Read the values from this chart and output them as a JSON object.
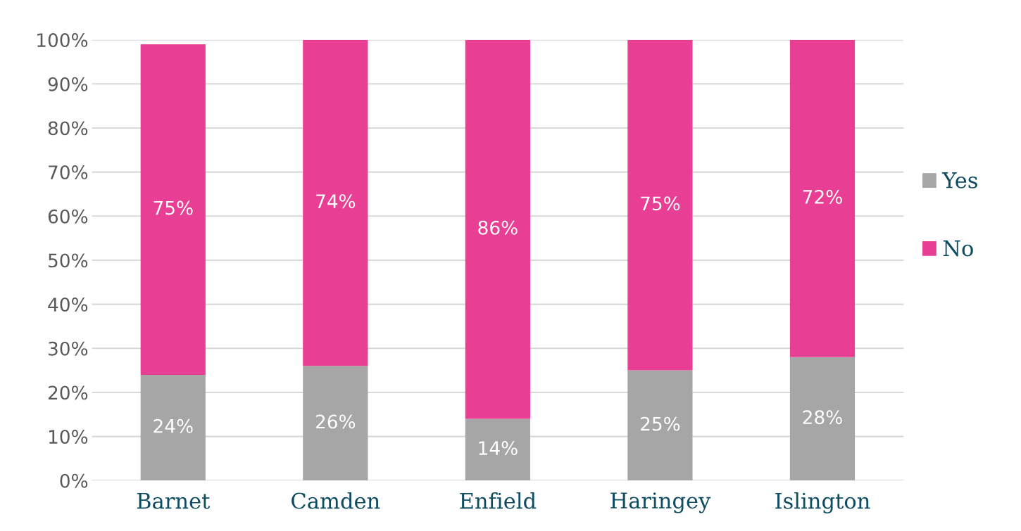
{
  "chart_data": {
    "type": "bar",
    "stacked": true,
    "categories": [
      "Barnet",
      "Camden",
      "Enfield",
      "Haringey",
      "Islington"
    ],
    "series": [
      {
        "name": "Yes",
        "color": "#a6a6a6",
        "values": [
          24,
          26,
          14,
          25,
          28
        ]
      },
      {
        "name": "No",
        "color": "#e83e94",
        "values": [
          75,
          74,
          86,
          75,
          72
        ]
      }
    ],
    "ylim": [
      0,
      100
    ],
    "yticks": [
      {
        "value": 0,
        "label": "0%"
      },
      {
        "value": 10,
        "label": "10%"
      },
      {
        "value": 20,
        "label": "20%"
      },
      {
        "value": 30,
        "label": "30%"
      },
      {
        "value": 40,
        "label": "40%"
      },
      {
        "value": 50,
        "label": "50%"
      },
      {
        "value": 60,
        "label": "60%"
      },
      {
        "value": 70,
        "label": "70%"
      },
      {
        "value": 80,
        "label": "80%"
      },
      {
        "value": 90,
        "label": "90%"
      },
      {
        "value": 100,
        "label": "100%"
      }
    ],
    "value_labels": [
      [
        "24%",
        "26%",
        "14%",
        "25%",
        "28%"
      ],
      [
        "75%",
        "74%",
        "86%",
        "75%",
        "72%"
      ]
    ],
    "grid": "y",
    "legend": "right"
  }
}
